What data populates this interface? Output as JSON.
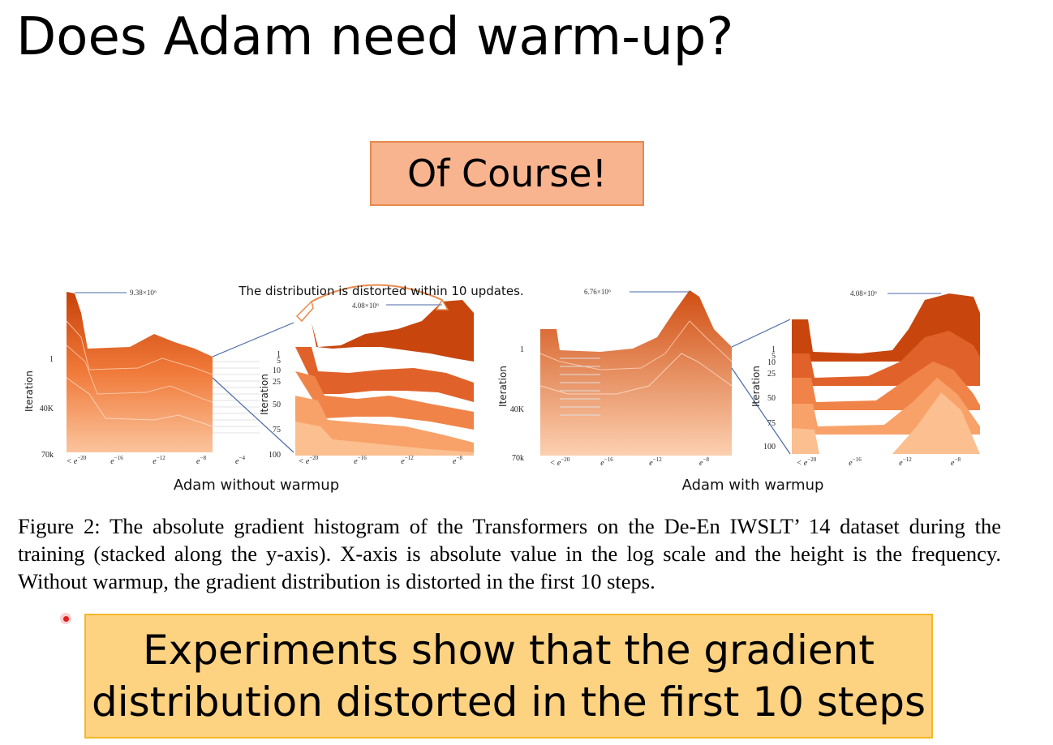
{
  "slide": {
    "title": "Does Adam need warm-up?",
    "answer": "Of Course!",
    "conclusion_line1": "Experiments show that the gradient",
    "conclusion_line2": "distribution distorted in the first 10 steps"
  },
  "figure": {
    "annotation": "The distribution is distorted within 10 updates.",
    "caption": "Figure 2: The absolute gradient histogram of the Transformers on the De-En IWSLT’ 14 dataset during the training (stacked along the y-axis). X-axis is absolute value in the log scale and the height is the frequency. Without warmup, the gradient distribution is distorted in the first 10 steps.",
    "panels": [
      {
        "caption": "Adam without warmup",
        "ylabel": "Iteration",
        "yticks": [
          "1",
          "40K",
          "70k"
        ],
        "xticks": [
          "< e^{-20}",
          "e^{-16}",
          "e^{-12}",
          "e^{-8}",
          "e^{-4}"
        ],
        "peak_label": "9.38×10⁶",
        "zoom": {
          "ylabel": "Iteration",
          "yticks": [
            "1",
            "5",
            "10",
            "25",
            "50",
            "75",
            "100"
          ],
          "xticks": [
            "< e^{-20}",
            "e^{-16}",
            "e^{-12}",
            "e^{-8}"
          ],
          "peak_label": "4.08×10⁶"
        }
      },
      {
        "caption": "Adam with warmup",
        "ylabel": "Iteration",
        "yticks": [
          "1",
          "40K",
          "70k"
        ],
        "xticks": [
          "< e^{-20}",
          "e^{-16}",
          "e^{-12}",
          "e^{-8}"
        ],
        "peak_label": "6.76×10⁶",
        "zoom": {
          "ylabel": "Iteration",
          "yticks": [
            "1",
            "5",
            "10",
            "25",
            "50",
            "75",
            "100"
          ],
          "xticks": [
            "< e^{-20}",
            "e^{-16}",
            "e^{-12}",
            "e^{-8}"
          ],
          "peak_label": "4.08×10⁶"
        }
      }
    ]
  },
  "colors": {
    "answer_box": "#f8b48f",
    "conclusion_box": "#fdd280",
    "histogram_dark": "#c8420a",
    "histogram_light": "#fbc49c",
    "connector": "#4a6aa8"
  }
}
